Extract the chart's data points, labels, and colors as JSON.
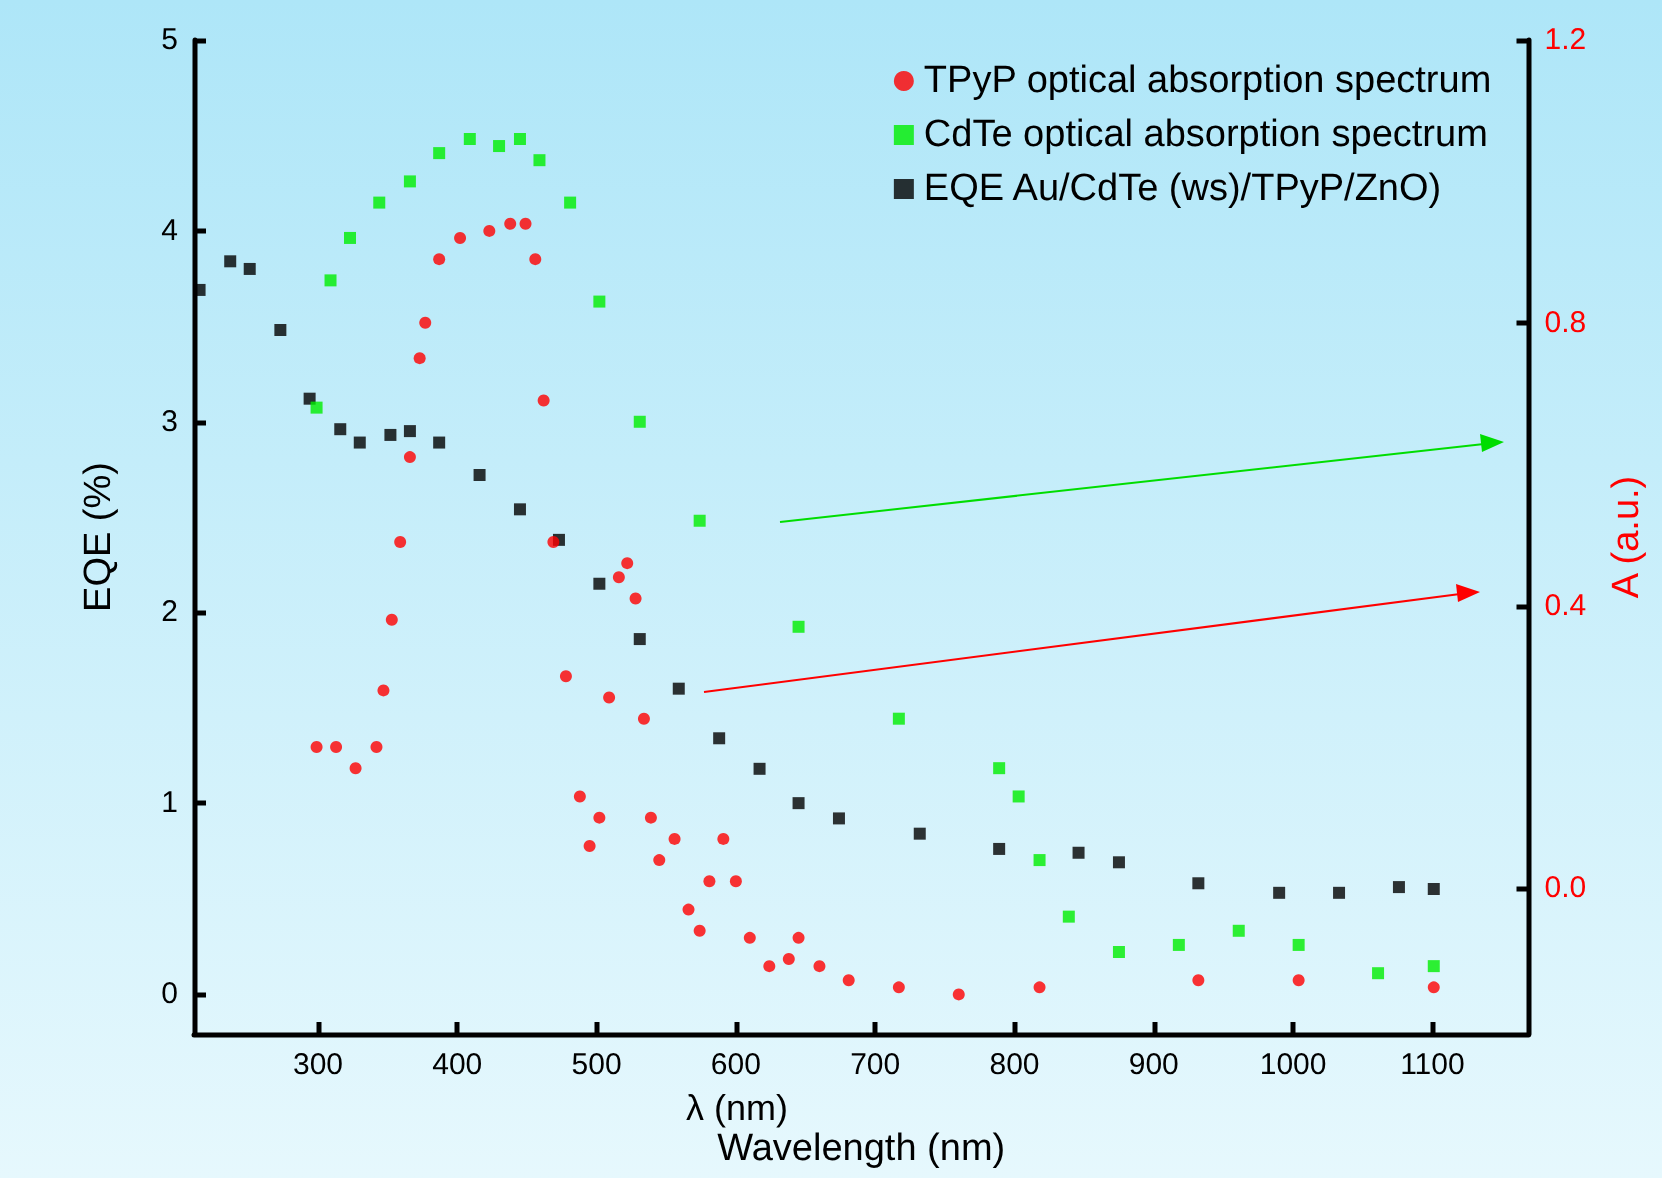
{
  "chart_data": {
    "type": "scatter",
    "xlabel": "Wavelength (nm)",
    "ylabel": "EQE (%)",
    "y2label": "A (a.u.)",
    "annotations": [
      "λ (nm)"
    ],
    "xlim": [
      211,
      1169
    ],
    "xticks": [
      300,
      400,
      500,
      600,
      700,
      800,
      900,
      1000,
      1100
    ],
    "ylim": [
      -0.21,
      5
    ],
    "yticks": [
      0,
      1,
      2,
      3,
      4,
      5
    ],
    "y2lim": [
      -0.206,
      1.2
    ],
    "y2ticks": [
      {
        "value": 0,
        "label": "0.0"
      },
      {
        "value": 0.4,
        "label": "0.4"
      },
      {
        "value": 0.8,
        "label": "0.8"
      },
      {
        "value": 1.2,
        "label": "1.2"
      }
    ],
    "legend": "top right",
    "grid": false,
    "series": [
      {
        "name": "TPyP optical absorption spectrum",
        "color": "#ff0000",
        "axis": "y2",
        "marker": "circle",
        "x": [
          299,
          313,
          327,
          342,
          347,
          353,
          359,
          366,
          373,
          377,
          387,
          402,
          423,
          438,
          449,
          456,
          462,
          469,
          478,
          488,
          495,
          502,
          509,
          516,
          522,
          528,
          534,
          539,
          545,
          556,
          566,
          574,
          581,
          591,
          600,
          610,
          624,
          638,
          645,
          660,
          681,
          717,
          760,
          818,
          932,
          1004,
          1101
        ],
        "values": [
          0.2,
          0.2,
          0.17,
          0.2,
          0.28,
          0.38,
          0.49,
          0.61,
          0.75,
          0.8,
          0.89,
          0.92,
          0.93,
          0.94,
          0.94,
          0.89,
          0.69,
          0.49,
          0.3,
          0.13,
          0.06,
          0.1,
          0.27,
          0.44,
          0.46,
          0.41,
          0.24,
          0.1,
          0.04,
          0.07,
          -0.03,
          -0.06,
          0.01,
          0.07,
          0.01,
          -0.07,
          -0.11,
          -0.1,
          -0.07,
          -0.11,
          -0.13,
          -0.14,
          -0.15,
          -0.14,
          -0.13,
          -0.13,
          -0.14
        ]
      },
      {
        "name": "CdTe optical absorption spectrum",
        "color": "#00ee00",
        "axis": "y2",
        "marker": "square",
        "x": [
          299,
          309,
          323,
          344,
          366,
          387,
          409,
          430,
          445,
          459,
          481,
          502,
          531,
          574,
          645,
          717,
          789,
          803,
          818,
          839,
          875,
          918,
          961,
          1004,
          1061,
          1101
        ],
        "values": [
          0.68,
          0.86,
          0.92,
          0.97,
          1.0,
          1.04,
          1.06,
          1.05,
          1.06,
          1.03,
          0.97,
          0.83,
          0.66,
          0.52,
          0.37,
          0.24,
          0.17,
          0.13,
          0.04,
          -0.04,
          -0.09,
          -0.08,
          -0.06,
          -0.08,
          -0.12,
          -0.11
        ]
      },
      {
        "name": "EQE Au/CdTe (ws)/TPyP/ZnO)",
        "color": "#000000",
        "marker": "square",
        "x": [
          215,
          237,
          251,
          273,
          294,
          316,
          330,
          352,
          366,
          387,
          416,
          445,
          473,
          502,
          531,
          559,
          588,
          617,
          645,
          674,
          732,
          789,
          846,
          875,
          932,
          990,
          1033,
          1076,
          1101
        ],
        "values": [
          3.69,
          3.84,
          3.8,
          3.48,
          3.12,
          2.96,
          2.89,
          2.93,
          2.95,
          2.89,
          2.72,
          2.54,
          2.38,
          2.15,
          1.86,
          1.6,
          1.34,
          1.18,
          1.0,
          0.92,
          0.84,
          0.76,
          0.74,
          0.69,
          0.58,
          0.53,
          0.53,
          0.56,
          0.55
        ]
      }
    ]
  }
}
